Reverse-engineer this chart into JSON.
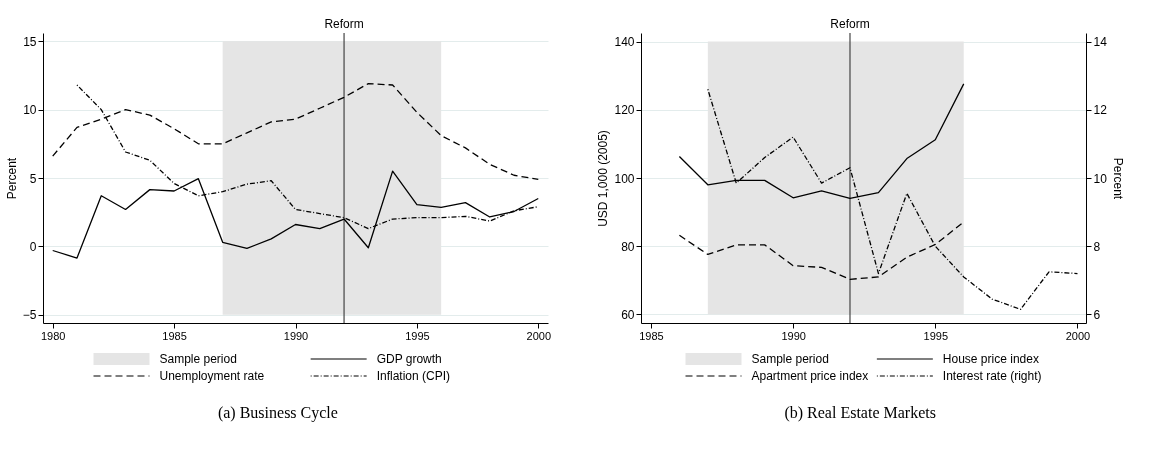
{
  "chart_data": [
    {
      "type": "line",
      "title": "(a) Business Cycle",
      "ylabel": "Percent",
      "xlim": [
        1979.6,
        2000.4
      ],
      "xticks": [
        1980,
        1985,
        1990,
        1995,
        2000
      ],
      "ylim": [
        -5.6,
        15.6
      ],
      "yticks": [
        -5,
        0,
        5,
        10,
        15
      ],
      "grid": "y",
      "legend": "bottom",
      "bands": [
        {
          "axis": "x",
          "from": 1987,
          "to": 1996,
          "label": "Sample period",
          "color": "#e5e5e5"
        }
      ],
      "ref_lines": [
        {
          "axis": "x",
          "value": 1992,
          "label": "Reform",
          "color": "#444444"
        }
      ],
      "series": [
        {
          "name": "GDP growth",
          "color": "#000000",
          "line_style": "solid",
          "x": [
            1980,
            1981,
            1982,
            1983,
            1984,
            1985,
            1986,
            1987,
            1988,
            1989,
            1990,
            1991,
            1992,
            1993,
            1994,
            1995,
            1996,
            1997,
            1998,
            1999,
            2000
          ],
          "values": [
            -0.3,
            -0.85,
            3.7,
            2.7,
            4.15,
            4.05,
            4.95,
            0.3,
            -0.15,
            0.55,
            1.6,
            1.3,
            2.0,
            -0.1,
            5.5,
            3.05,
            2.85,
            3.2,
            2.15,
            2.55,
            3.5
          ]
        },
        {
          "name": "Unemployment rate",
          "color": "#000000",
          "line_style": "dashed",
          "x": [
            1980,
            1981,
            1982,
            1983,
            1984,
            1985,
            1986,
            1987,
            1988,
            1989,
            1990,
            1991,
            1992,
            1993,
            1994,
            1995,
            1996,
            1997,
            1998,
            1999,
            2000
          ],
          "values": [
            6.6,
            8.7,
            9.3,
            10.0,
            9.6,
            8.6,
            7.5,
            7.5,
            8.3,
            9.1,
            9.3,
            10.1,
            10.9,
            11.9,
            11.8,
            9.8,
            8.1,
            7.2,
            6.0,
            5.2,
            4.9
          ]
        },
        {
          "name": "Inflation (CPI)",
          "color": "#000000",
          "line_style": "dotted",
          "x": [
            1981,
            1982,
            1983,
            1984,
            1985,
            1986,
            1987,
            1988,
            1989,
            1990,
            1991,
            1992,
            1993,
            1994,
            1995,
            1996,
            1997,
            1998,
            1999,
            2000
          ],
          "values": [
            11.8,
            10.0,
            6.9,
            6.3,
            4.6,
            3.7,
            4.0,
            4.55,
            4.8,
            2.7,
            2.4,
            2.1,
            1.3,
            2.0,
            2.1,
            2.1,
            2.2,
            1.85,
            2.6,
            2.9
          ]
        }
      ]
    },
    {
      "type": "line",
      "title": "(b) Real Estate Markets",
      "ylabel": "USD 1,000 (2005)",
      "y2label": "Percent",
      "xlim": [
        1984.65,
        2000.3
      ],
      "xticks": [
        1985,
        1990,
        1995,
        2000
      ],
      "ylim": [
        57.5,
        142.5
      ],
      "yticks": [
        60,
        80,
        100,
        120,
        140
      ],
      "y2lim": [
        5.75,
        14.25
      ],
      "y2ticks": [
        6,
        8,
        10,
        12,
        14
      ],
      "grid": "y",
      "legend": "bottom",
      "bands": [
        {
          "axis": "x",
          "from": 1987,
          "to": 1996,
          "label": "Sample period",
          "color": "#e5e5e5"
        }
      ],
      "ref_lines": [
        {
          "axis": "x",
          "value": 1992,
          "label": "Reform",
          "color": "#444444"
        }
      ],
      "series": [
        {
          "name": "House price index",
          "color": "#000000",
          "line_style": "solid",
          "x": [
            1986,
            1987,
            1988,
            1989,
            1990,
            1991,
            1992,
            1993,
            1994,
            1995,
            1996
          ],
          "values": [
            106.3,
            98.0,
            99.3,
            99.3,
            94.2,
            96.2,
            94.0,
            95.7,
            105.7,
            111.2,
            127.6
          ]
        },
        {
          "name": "Apartment price index",
          "color": "#000000",
          "line_style": "dashed",
          "x": [
            1986,
            1987,
            1988,
            1989,
            1990,
            1991,
            1992,
            1993,
            1994,
            1995,
            1996
          ],
          "values": [
            83.2,
            77.6,
            80.4,
            80.4,
            74.3,
            73.8,
            70.3,
            71.0,
            76.8,
            80.5,
            87.1
          ]
        },
        {
          "name": "Interest rate (right)",
          "color": "#000000",
          "line_style": "dotted",
          "axis": "y2",
          "x": [
            1987,
            1988,
            1989,
            1990,
            1991,
            1992,
            1993,
            1994,
            1995,
            1996,
            1997,
            1998,
            1999,
            2000
          ],
          "values": [
            12.6,
            9.85,
            10.6,
            11.2,
            9.85,
            10.3,
            7.2,
            9.55,
            8.0,
            7.1,
            6.45,
            6.15,
            7.25,
            7.2
          ]
        }
      ]
    }
  ]
}
